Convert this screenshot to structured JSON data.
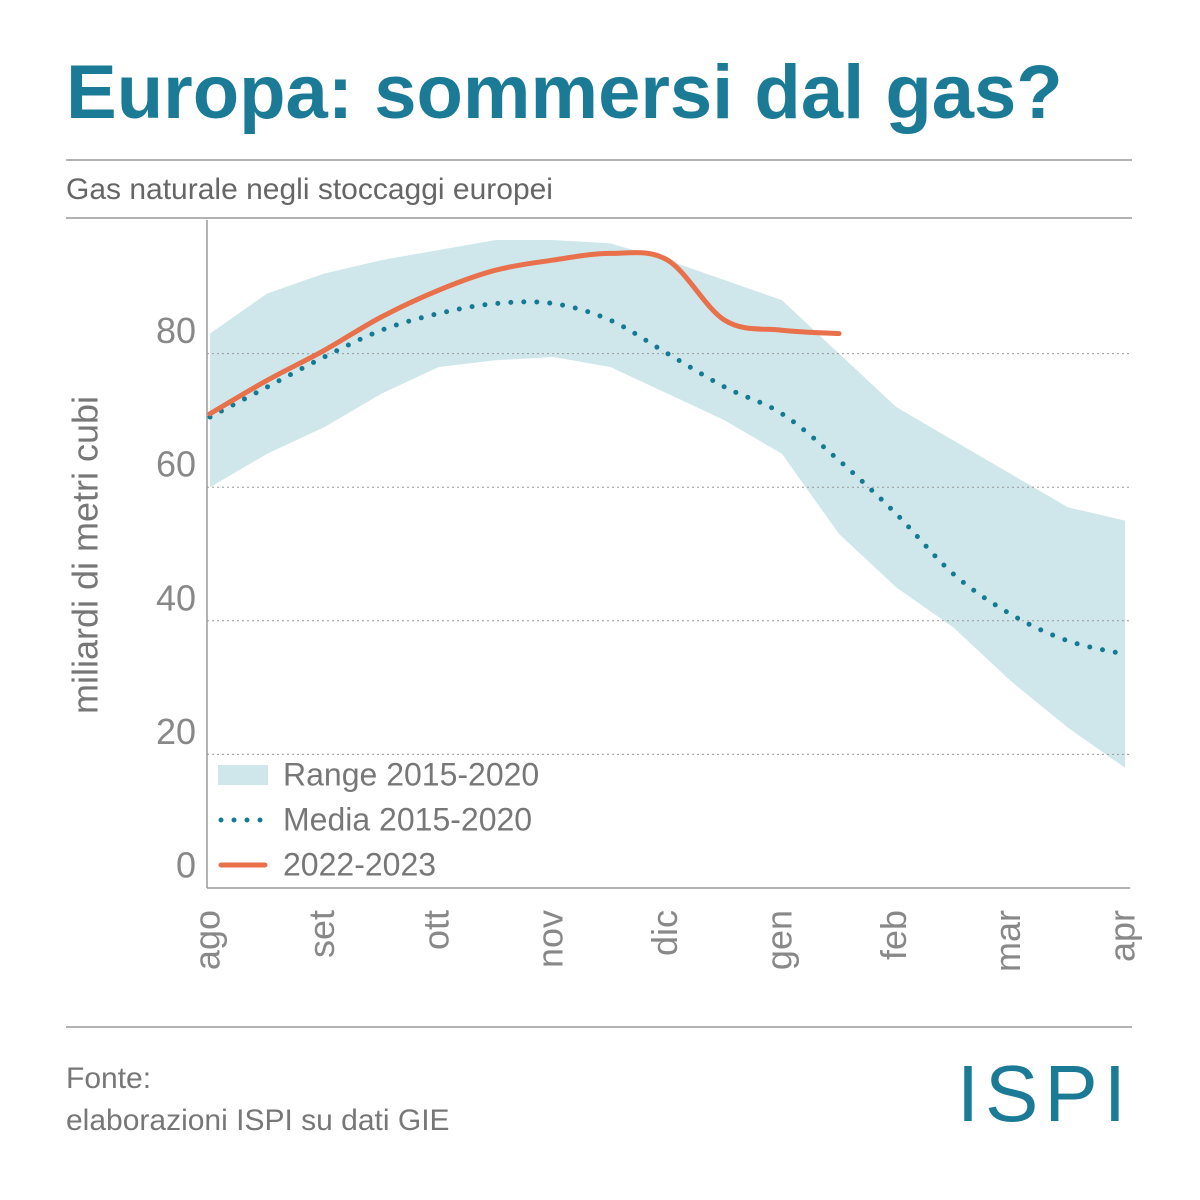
{
  "chart_data": {
    "type": "line",
    "title": "Europa: sommersi dal gas?",
    "subtitle": "Gas naturale negli stoccaggi europei",
    "y_label": "miliardi di metri cubi",
    "source": [
      "Fonte:",
      "elaborazioni ISPI su dati GIE"
    ],
    "logo": "ISPI",
    "categories": [
      "ago",
      null,
      "set",
      null,
      "ott",
      null,
      "nov",
      null,
      "dic",
      null,
      "gen",
      null,
      "feb",
      null,
      "mar",
      null,
      "apr"
    ],
    "ylim": [
      0,
      100
    ],
    "yticks": [
      0,
      20,
      40,
      60,
      80
    ],
    "grid": true,
    "legend": "lower left",
    "series": [
      {
        "name": "Range 2015-2020",
        "color": "#cfe7ea",
        "style": "band",
        "upper": [
          83,
          89,
          92,
          94,
          95.5,
          97,
          97,
          96.5,
          94,
          91,
          88,
          80,
          72,
          67,
          62,
          57,
          55
        ],
        "lower": [
          60,
          65,
          69,
          74,
          78,
          79,
          79.5,
          78,
          74,
          70,
          65,
          53,
          45,
          39,
          31,
          24,
          18
        ]
      },
      {
        "name": "Media 2015-2020",
        "color": "#137a94",
        "style": "dotted",
        "values": [
          70.5,
          75,
          79.5,
          83.5,
          86,
          87.5,
          87.5,
          85,
          80,
          75,
          71,
          64,
          56,
          47,
          41,
          37,
          35
        ]
      },
      {
        "name": "2022-2023",
        "color": "#e8704b",
        "style": "solid",
        "values": [
          71,
          76,
          80.5,
          85.5,
          89.5,
          92.5,
          94,
          95,
          94,
          85,
          83.5,
          83,
          null,
          null,
          null,
          null,
          null
        ]
      }
    ]
  }
}
